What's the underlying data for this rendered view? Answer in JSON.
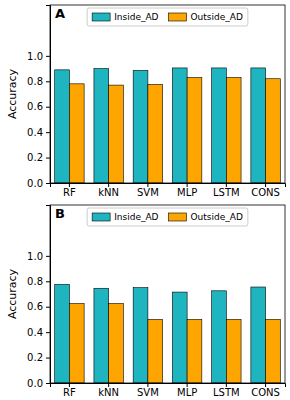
{
  "chart_data": [
    {
      "type": "bar",
      "title": "A",
      "y_label": "Accuracy",
      "categories": [
        "RF",
        "kNN",
        "SVM",
        "MLP",
        "LSTM",
        "CONS"
      ],
      "series": [
        {
          "name": "Inside_AD",
          "color": "#1fb5c0",
          "values": [
            0.89,
            0.9,
            0.885,
            0.905,
            0.905,
            0.905
          ]
        },
        {
          "name": "Outside_AD",
          "color": "#ffa500",
          "values": [
            0.78,
            0.77,
            0.775,
            0.83,
            0.83,
            0.82
          ]
        }
      ],
      "ylim": [
        0,
        1.4
      ],
      "yticks": [
        {
          "value": 0,
          "label": "0.0"
        },
        {
          "value": 0.2,
          "label": "0.2"
        },
        {
          "value": 0.4,
          "label": "0.4"
        },
        {
          "value": 0.6,
          "label": "0.6"
        },
        {
          "value": 0.8,
          "label": "0.8"
        },
        {
          "value": 1.0,
          "label": "1.0"
        }
      ],
      "legend": "upper center"
    },
    {
      "type": "bar",
      "title": "B",
      "y_label": "Accuracy",
      "categories": [
        "RF",
        "kNN",
        "SVM",
        "MLP",
        "LSTM",
        "CONS"
      ],
      "series": [
        {
          "name": "Inside_AD",
          "color": "#1fb5c0",
          "values": [
            0.775,
            0.745,
            0.75,
            0.715,
            0.725,
            0.755
          ]
        },
        {
          "name": "Outside_AD",
          "color": "#ffa500",
          "values": [
            0.625,
            0.625,
            0.5,
            0.5,
            0.5,
            0.5
          ]
        }
      ],
      "ylim": [
        0,
        1.4
      ],
      "yticks": [
        {
          "value": 0,
          "label": "0.0"
        },
        {
          "value": 0.2,
          "label": "0.2"
        },
        {
          "value": 0.4,
          "label": "0.4"
        },
        {
          "value": 0.6,
          "label": "0.6"
        },
        {
          "value": 0.8,
          "label": "0.8"
        },
        {
          "value": 1.0,
          "label": "1.0"
        }
      ],
      "legend": "upper center"
    }
  ]
}
